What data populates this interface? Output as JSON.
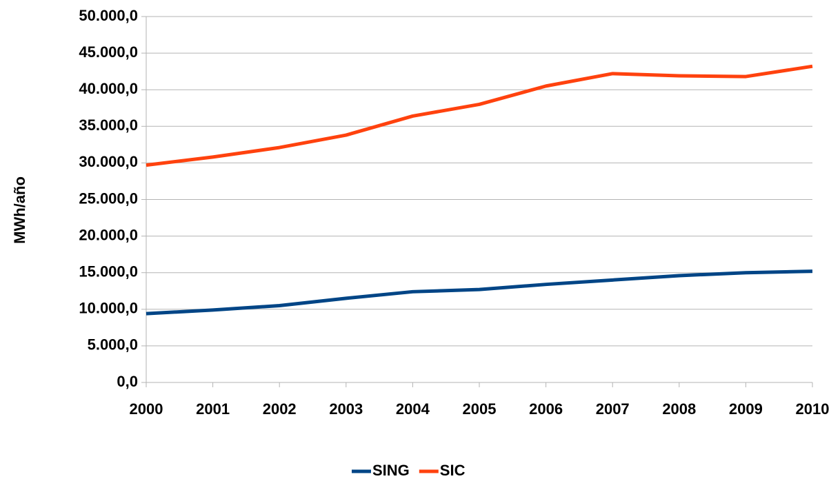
{
  "chart_data": {
    "type": "line",
    "y_label": "MWh/año",
    "categories": [
      "2000",
      "2001",
      "2002",
      "2003",
      "2004",
      "2005",
      "2006",
      "2007",
      "2008",
      "2009",
      "2010"
    ],
    "series": [
      {
        "name": "SING",
        "color": "#004586",
        "values": [
          9400,
          9900,
          10500,
          11500,
          12400,
          12700,
          13400,
          14000,
          14600,
          15000,
          15200
        ]
      },
      {
        "name": "SIC",
        "color": "#ff420e",
        "values": [
          29700,
          30800,
          32100,
          33800,
          36400,
          38000,
          40500,
          42200,
          41900,
          41800,
          43200
        ]
      }
    ],
    "ylim": [
      0,
      50000
    ],
    "yticks": [
      {
        "value": 0,
        "label": "0,0"
      },
      {
        "value": 5000,
        "label": "5.000,0"
      },
      {
        "value": 10000,
        "label": "10.000,0"
      },
      {
        "value": 15000,
        "label": "15.000,0"
      },
      {
        "value": 20000,
        "label": "20.000,0"
      },
      {
        "value": 25000,
        "label": "25.000,0"
      },
      {
        "value": 30000,
        "label": "30.000,0"
      },
      {
        "value": 35000,
        "label": "35.000,0"
      },
      {
        "value": 40000,
        "label": "40.000,0"
      },
      {
        "value": 45000,
        "label": "45.000,0"
      },
      {
        "value": 50000,
        "label": "50.000,0"
      }
    ],
    "grid": true,
    "legend": "bottom"
  }
}
